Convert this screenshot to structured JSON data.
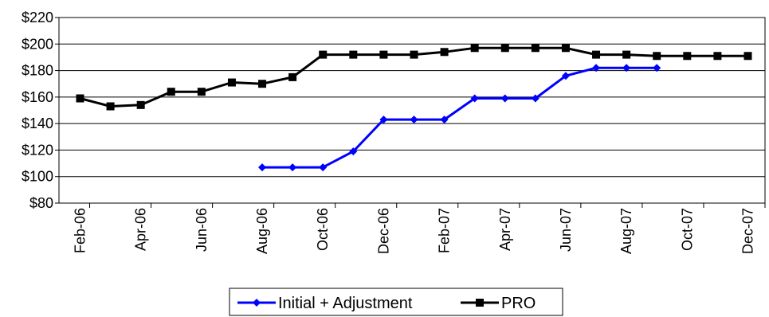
{
  "chart_data": {
    "type": "line",
    "title": "",
    "xlabel": "",
    "ylabel": "",
    "ylim": [
      80,
      220
    ],
    "ytick_step": 20,
    "y_tick_prefix": "$",
    "grid": "horizontal",
    "legend_position": "bottom",
    "categories": [
      "Feb-06",
      "Mar-06",
      "Apr-06",
      "May-06",
      "Jun-06",
      "Jul-06",
      "Aug-06",
      "Sep-06",
      "Oct-06",
      "Nov-06",
      "Dec-06",
      "Jan-07",
      "Feb-07",
      "Mar-07",
      "Apr-07",
      "May-07",
      "Jun-07",
      "Jul-07",
      "Aug-07",
      "Sep-07",
      "Oct-07",
      "Nov-07",
      "Dec-07"
    ],
    "tick_labels": [
      "Feb-06",
      "Apr-06",
      "Jun-06",
      "Aug-06",
      "Oct-06",
      "Dec-06",
      "Feb-07",
      "Apr-07",
      "Jun-07",
      "Aug-07",
      "Oct-07",
      "Dec-07"
    ],
    "series": [
      {
        "name": "Initial + Adjustment",
        "color": "#0000ff",
        "marker": "diamond",
        "values": [
          null,
          null,
          null,
          null,
          null,
          null,
          107,
          107,
          107,
          119,
          143,
          143,
          143,
          159,
          159,
          159,
          176,
          182,
          182,
          182,
          null,
          null,
          null
        ]
      },
      {
        "name": "PRO",
        "color": "#000000",
        "marker": "square",
        "values": [
          159,
          153,
          154,
          164,
          164,
          171,
          170,
          175,
          192,
          192,
          192,
          192,
          194,
          197,
          197,
          197,
          197,
          192,
          192,
          191,
          191,
          191,
          191
        ]
      }
    ]
  }
}
